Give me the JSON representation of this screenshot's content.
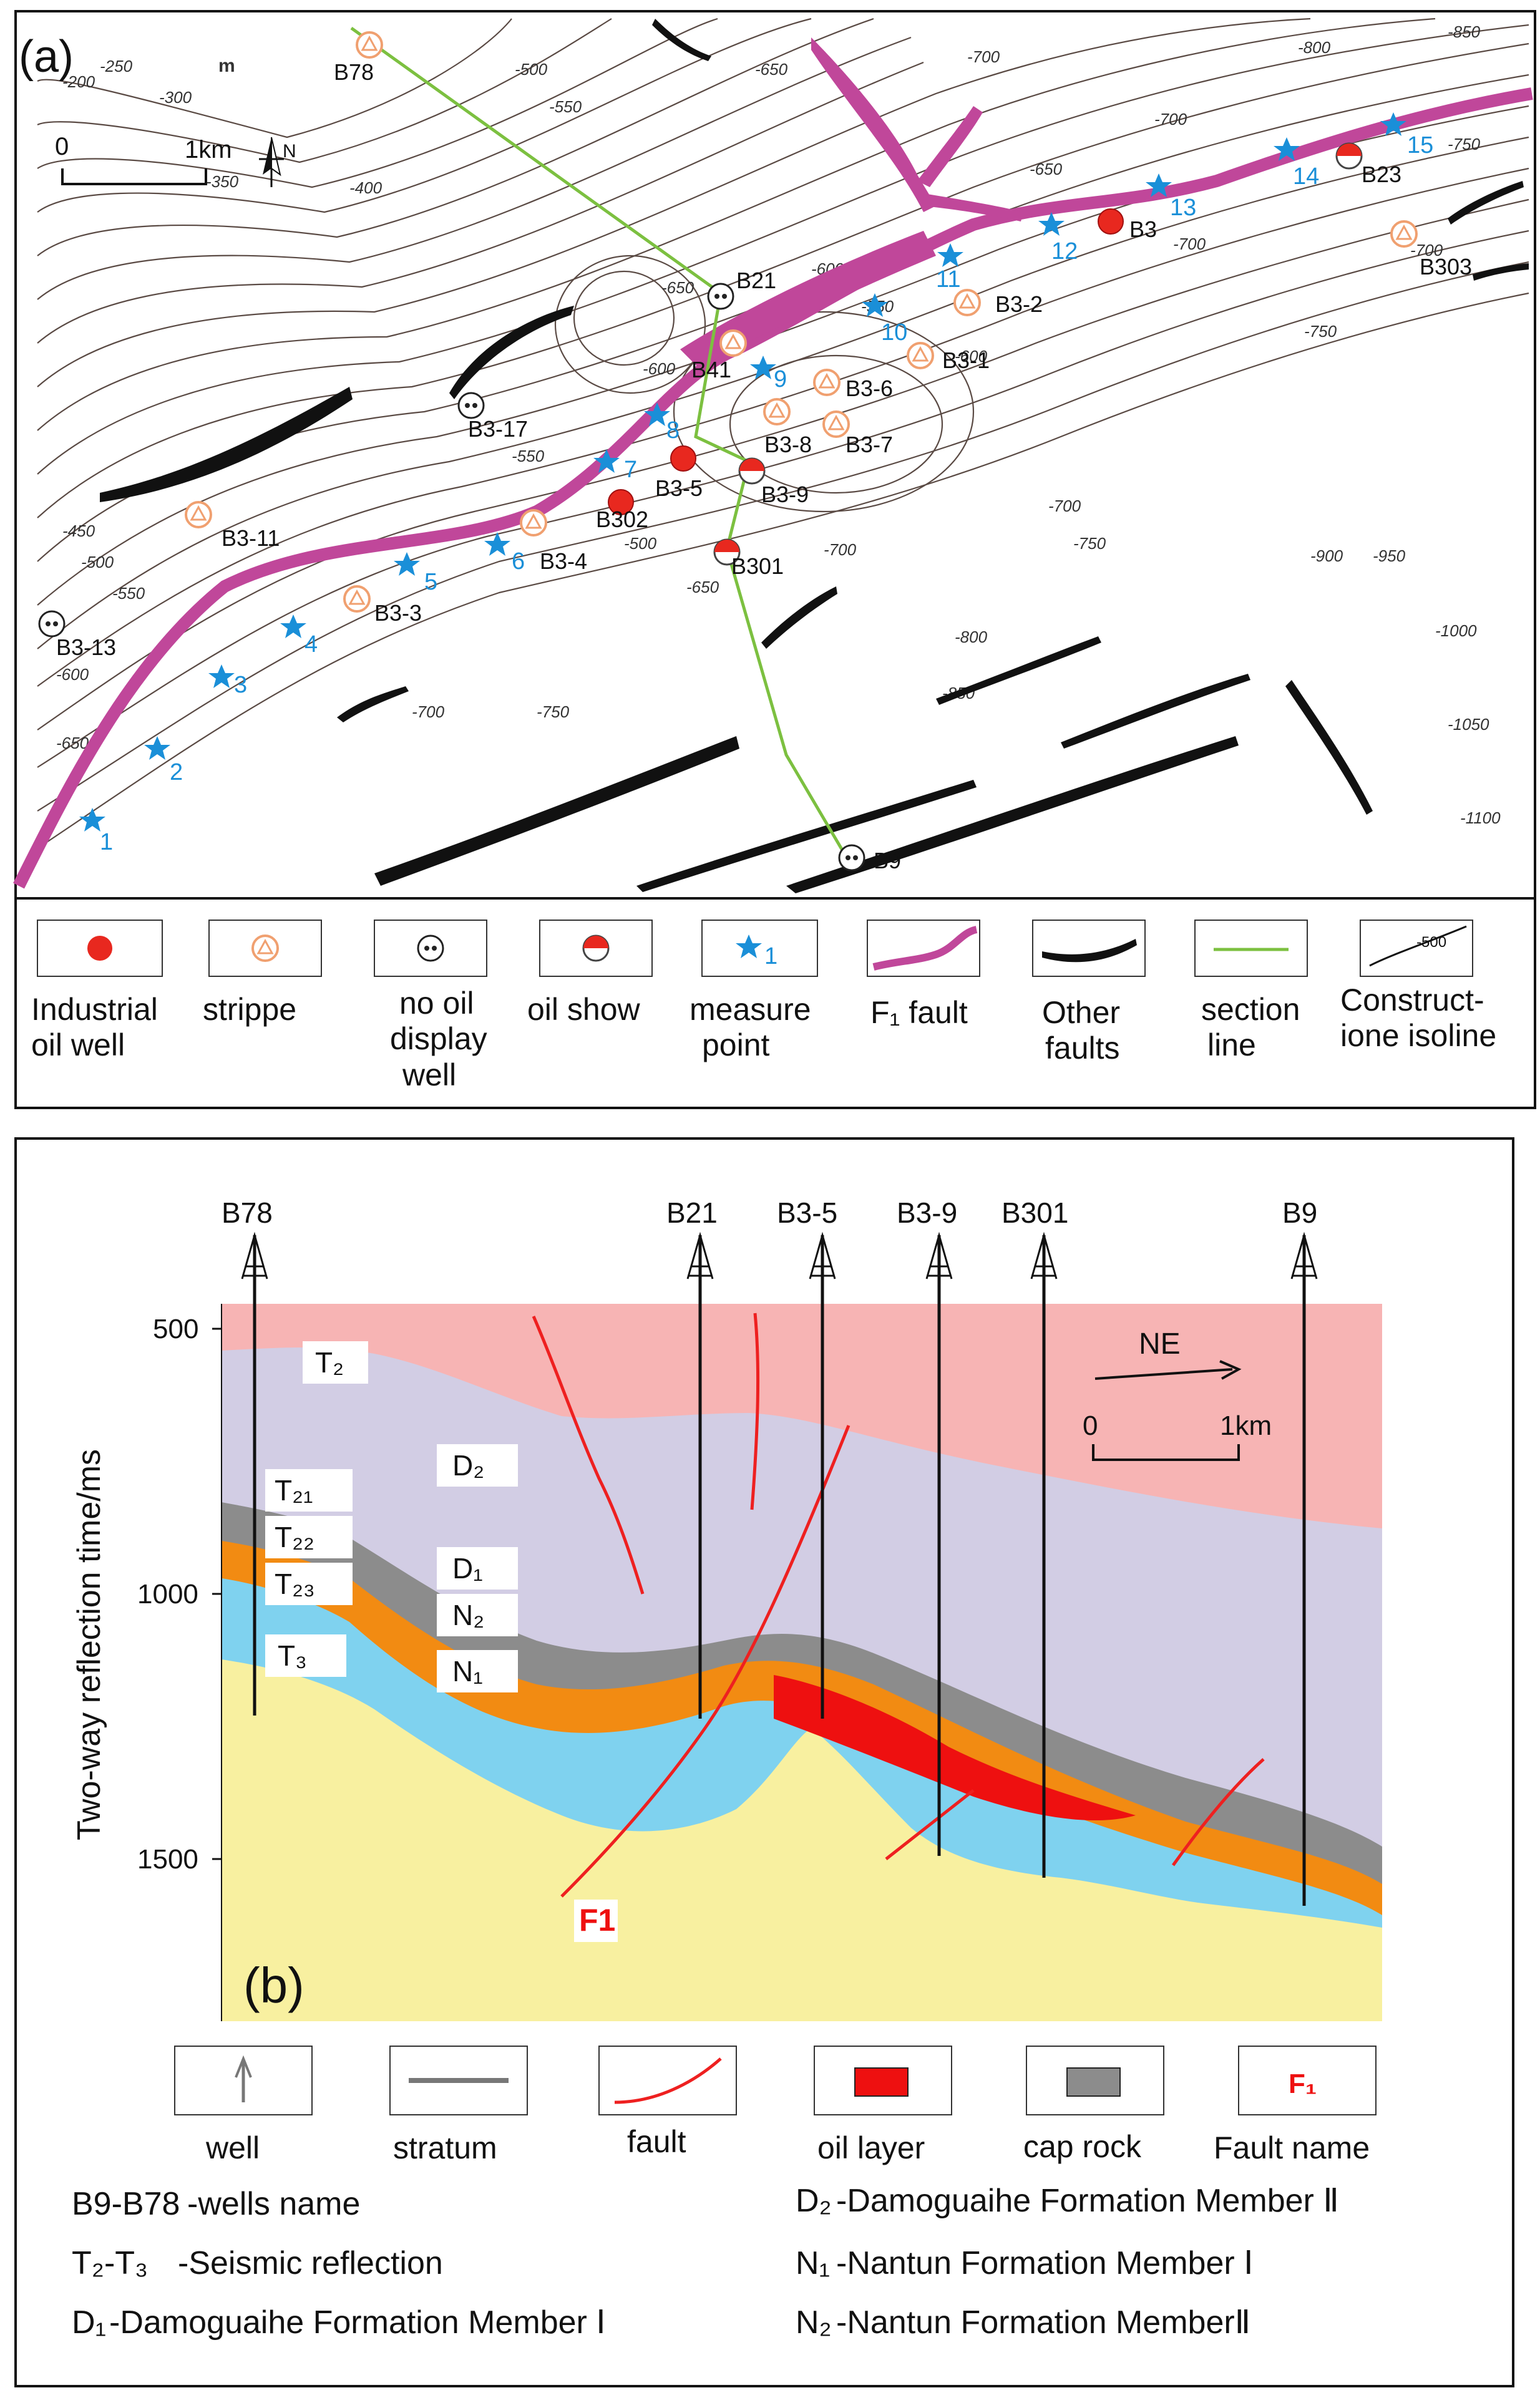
{
  "panel_a": {
    "label": "(a)",
    "scale": {
      "zero": "0",
      "distance": "1km",
      "north": "N"
    },
    "unit_fragment": "m",
    "contour_labels": [
      "-200",
      "-250",
      "-300",
      "-350",
      "-400",
      "-450",
      "-500",
      "-550",
      "-600",
      "-650",
      "-700",
      "-750",
      "-800",
      "-850",
      "-900",
      "-950",
      "-1000",
      "-1050",
      "-1100"
    ],
    "wells": [
      {
        "name": "B78",
        "type": "stripper"
      },
      {
        "name": "B21",
        "type": "no_oil"
      },
      {
        "name": "B41",
        "type": "stripper"
      },
      {
        "name": "B3-17",
        "type": "no_oil"
      },
      {
        "name": "B3-5",
        "type": "industrial"
      },
      {
        "name": "B302",
        "type": "industrial"
      },
      {
        "name": "B3-9",
        "type": "oil_show"
      },
      {
        "name": "B301",
        "type": "oil_show"
      },
      {
        "name": "B3-4",
        "type": "stripper"
      },
      {
        "name": "B3-3",
        "type": "stripper"
      },
      {
        "name": "B3-11",
        "type": "stripper"
      },
      {
        "name": "B3-13",
        "type": "no_oil"
      },
      {
        "name": "B3-8",
        "type": "stripper"
      },
      {
        "name": "B3-7",
        "type": "stripper"
      },
      {
        "name": "B3-6",
        "type": "stripper"
      },
      {
        "name": "B3-1",
        "type": "stripper"
      },
      {
        "name": "B3-2",
        "type": "stripper"
      },
      {
        "name": "B3",
        "type": "industrial"
      },
      {
        "name": "B23",
        "type": "oil_show"
      },
      {
        "name": "B303",
        "type": "stripper"
      },
      {
        "name": "B9",
        "type": "no_oil"
      }
    ],
    "measure_points": [
      "1",
      "2",
      "3",
      "4",
      "5",
      "6",
      "7",
      "8",
      "9",
      "10",
      "11",
      "12",
      "13",
      "14",
      "15"
    ],
    "legend": [
      {
        "key": "industrial",
        "label_lines": [
          "Industrial",
          "oil well"
        ]
      },
      {
        "key": "stripper",
        "label_lines": [
          "strippe"
        ]
      },
      {
        "key": "no_oil",
        "label_lines": [
          "no oil",
          "display",
          "well"
        ]
      },
      {
        "key": "oil_show",
        "label_lines": [
          "oil show"
        ]
      },
      {
        "key": "measure",
        "label_lines": [
          "measure",
          "point"
        ],
        "sample": "1"
      },
      {
        "key": "f1",
        "label_lines": [
          "F₁ fault"
        ]
      },
      {
        "key": "other_faults",
        "label_lines": [
          "Other",
          "faults"
        ]
      },
      {
        "key": "section",
        "label_lines": [
          "section",
          "line"
        ]
      },
      {
        "key": "isoline",
        "label_lines": [
          "Construct-",
          "ione isoline"
        ],
        "sample": "-500"
      }
    ],
    "colors": {
      "f1": "#c0479a",
      "industrial": "#e8281f",
      "stripper": "#f0a070",
      "section": "#7cc040",
      "measure": "#1a8fd8"
    }
  },
  "panel_b": {
    "label": "(b)",
    "y_axis_label": "Two-way reflection time/ms",
    "y_ticks": [
      "500",
      "1000",
      "1500"
    ],
    "wells": [
      "B78",
      "B21",
      "B3-5",
      "B3-9",
      "B301",
      "B9"
    ],
    "direction": "NE",
    "scale": {
      "zero": "0",
      "distance": "1km"
    },
    "reflections": [
      "T₂",
      "T₂₁",
      "T₂₂",
      "T₂₃",
      "T₃"
    ],
    "formations": [
      "D₂",
      "D₁",
      "N₂",
      "N₁"
    ],
    "fault_name": "F1",
    "legend": [
      {
        "key": "well",
        "label": "well"
      },
      {
        "key": "stratum",
        "label": "stratum"
      },
      {
        "key": "fault",
        "label": "fault"
      },
      {
        "key": "oil",
        "label": "oil layer"
      },
      {
        "key": "cap",
        "label": "cap rock"
      },
      {
        "key": "fname",
        "label": "Fault name",
        "sample": "F₁"
      }
    ],
    "definitions_left": [
      {
        "code": "B9-B78",
        "text": "-wells name"
      },
      {
        "code": "T₂-T₃",
        "text": "-Seismic reflection"
      },
      {
        "code": "D₁",
        "text": "-Damoguaihe Formation  Member Ⅰ"
      }
    ],
    "definitions_right": [
      {
        "code": "D₂",
        "text": "-Damoguaihe Formation Member Ⅱ"
      },
      {
        "code": "N₁",
        "text": "-Nantun Formation Member Ⅰ"
      },
      {
        "code": "N₂",
        "text": "-Nantun Formation MemberⅡ"
      }
    ],
    "colors": {
      "t2_zone": "#f7b4b4",
      "d2": "#d2cde4",
      "cap": "#8c8c8c",
      "d1": "#f28b12",
      "n": "#7fd2ef",
      "basement": "#f8f0a0",
      "oil": "#ee1010",
      "fault": "#ee2020"
    }
  }
}
